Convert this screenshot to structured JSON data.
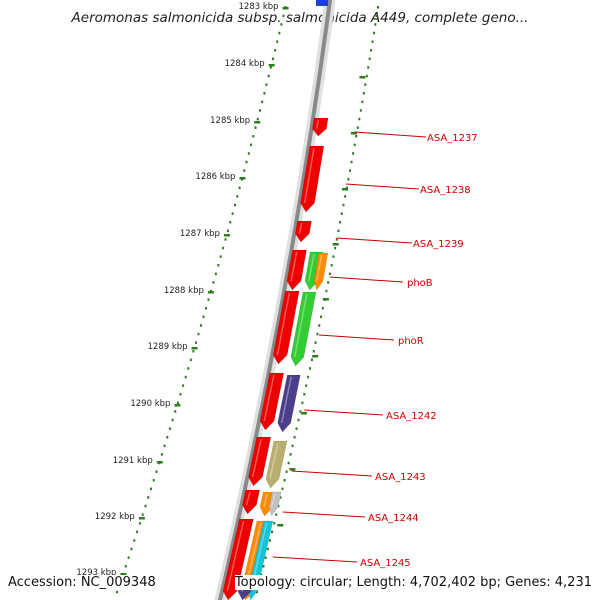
{
  "title": "Aeromonas salmonicida subsp. salmonicida A449, complete geno...",
  "accession": "Accession: NC_009348",
  "summary": "Topology: circular; Length: 4,702,402 bp; Genes: 4,231",
  "kbp_labels": [
    "1283 kbp",
    "1284 kbp",
    "1285 kbp",
    "1286 kbp",
    "1287 kbp",
    "1288 kbp",
    "1289 kbp",
    "1290 kbp",
    "1291 kbp",
    "1292 kbp",
    "1293 kbp"
  ],
  "gene_labels": [
    "ASA_1237",
    "ASA_1238",
    "ASA_1239",
    "phoB",
    "phoR",
    "ASA_1242",
    "ASA_1243",
    "ASA_1244",
    "ASA_1245"
  ],
  "colors": {
    "backbone": "#8a8a8a",
    "tick": "#2e7d1f",
    "gene_label": "#cc0000",
    "gene": "#ee0000",
    "green": "#33cc33",
    "orange": "#ff8c00",
    "indigo": "#4b3f8c",
    "khaki": "#b8ae6e",
    "cyan": "#11c6d8",
    "gray": "#c0c0c0",
    "blue": "#1f3fd9"
  }
}
